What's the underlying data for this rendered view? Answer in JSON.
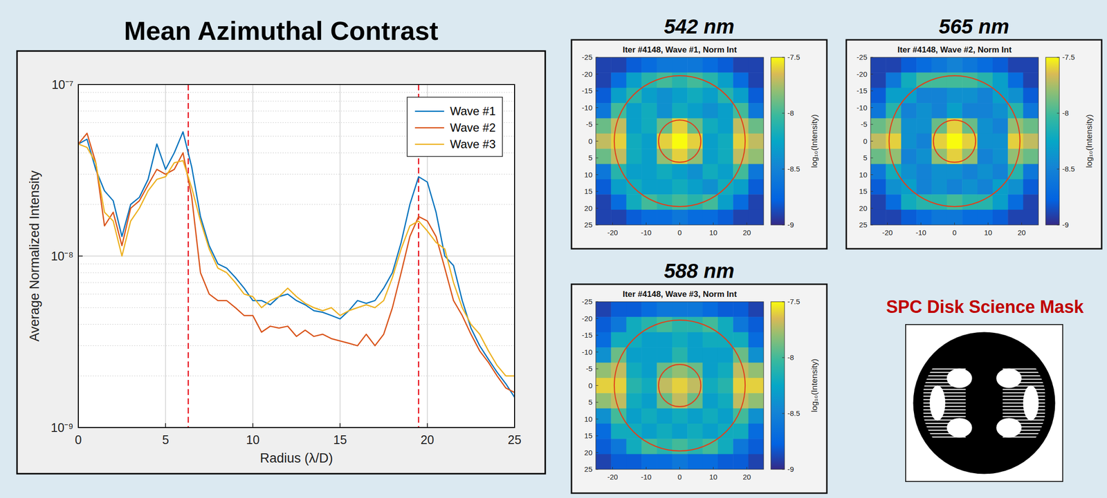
{
  "chart_data": [
    {
      "type": "line",
      "title": "Mean Azimuthal Contrast",
      "xlabel": "Radius (λ/D)",
      "ylabel": "Average Normalized Intensity",
      "log": "y",
      "grid": true,
      "legend": "upper right",
      "xlim": [
        0,
        25
      ],
      "xticks": [
        0,
        5,
        10,
        15,
        20,
        25
      ],
      "ylim": [
        1e-09,
        1e-07
      ],
      "yticks": [
        {
          "value": 1e-09,
          "label": "10⁻⁹"
        },
        {
          "value": 1e-08,
          "label": "10⁻⁸"
        },
        {
          "value": 1e-07,
          "label": "10⁻⁷"
        }
      ],
      "reference_lines": [
        6.3,
        19.5
      ],
      "x": [
        0,
        0.5,
        1,
        1.5,
        2,
        2.5,
        3,
        3.5,
        4,
        4.5,
        5,
        5.5,
        6,
        6.5,
        7,
        7.5,
        8,
        8.5,
        9,
        9.5,
        10,
        10.5,
        11,
        11.5,
        12,
        12.5,
        13,
        13.5,
        14,
        14.5,
        15,
        15.5,
        16,
        16.5,
        17,
        17.5,
        18,
        18.5,
        19,
        19.5,
        20,
        20.5,
        21,
        21.5,
        22,
        22.5,
        23,
        23.5,
        24,
        24.5,
        25
      ],
      "series": [
        {
          "name": "Wave #1",
          "color": "#0072bd",
          "values": [
            4.5e-08,
            4.8e-08,
            3.2e-08,
            2.4e-08,
            2.1e-08,
            1.3e-08,
            2e-08,
            2.2e-08,
            2.8e-08,
            4.5e-08,
            3.2e-08,
            4e-08,
            5.3e-08,
            3.3e-08,
            1.7e-08,
            1.15e-08,
            9e-09,
            8.5e-09,
            7.5e-09,
            6.5e-09,
            5.5e-09,
            5.5e-09,
            5.2e-09,
            5.8e-09,
            6e-09,
            5.5e-09,
            5.2e-09,
            4.8e-09,
            4.7e-09,
            4.5e-09,
            4.3e-09,
            4.8e-09,
            5.5e-09,
            5.3e-09,
            5.5e-09,
            6.5e-09,
            8e-09,
            1.2e-08,
            2e-08,
            2.9e-08,
            2.7e-08,
            1.8e-08,
            1e-08,
            8.8e-09,
            5.5e-09,
            3.8e-09,
            3e-09,
            2.5e-09,
            2.1e-09,
            1.8e-09,
            1.5e-09
          ]
        },
        {
          "name": "Wave #2",
          "color": "#d95319",
          "values": [
            4.5e-08,
            5.2e-08,
            3.5e-08,
            1.5e-08,
            1.8e-08,
            1.15e-08,
            1.9e-08,
            2.1e-08,
            2.6e-08,
            3.2e-08,
            3e-08,
            3.2e-08,
            4e-08,
            2.2e-08,
            8e-09,
            6e-09,
            5.5e-09,
            5.5e-09,
            5e-09,
            4.5e-09,
            4.5e-09,
            3.6e-09,
            3.9e-09,
            3.8e-09,
            3.9e-09,
            3.4e-09,
            3.7e-09,
            3.4e-09,
            3.5e-09,
            3.3e-09,
            3.2e-09,
            3.1e-09,
            3e-09,
            3.5e-09,
            3e-09,
            3.5e-09,
            5e-09,
            8e-09,
            1.3e-08,
            1.7e-08,
            1.6e-08,
            1.3e-08,
            8.5e-09,
            5.5e-09,
            4.5e-09,
            3.5e-09,
            2.8e-09,
            2.4e-09,
            2e-09,
            1.7e-09,
            1.6e-09
          ]
        },
        {
          "name": "Wave #3",
          "color": "#edb120",
          "values": [
            4.5e-08,
            4.3e-08,
            3.5e-08,
            1.8e-08,
            1.6e-08,
            1e-08,
            1.6e-08,
            1.9e-08,
            2.4e-08,
            2.8e-08,
            2.9e-08,
            3.5e-08,
            3.6e-08,
            2.5e-08,
            1.6e-08,
            1.1e-08,
            8.5e-09,
            8e-09,
            7e-09,
            6e-09,
            5.8e-09,
            5e-09,
            5.5e-09,
            5.8e-09,
            6.5e-09,
            5.8e-09,
            5.3e-09,
            5e-09,
            4.8e-09,
            5e-09,
            4.5e-09,
            4.8e-09,
            5e-09,
            5.2e-09,
            5e-09,
            5.5e-09,
            7.5e-09,
            1.1e-08,
            1.5e-08,
            1.6e-08,
            1.4e-08,
            1.2e-08,
            1.1e-08,
            7e-09,
            5e-09,
            4e-09,
            3.5e-09,
            2.8e-09,
            2.3e-09,
            2e-09,
            2e-09
          ]
        }
      ]
    },
    {
      "type": "heatmap",
      "title": "542 nm",
      "subtitle": "Iter #4148, Wave #1, Norm Int",
      "xlim": [
        -25,
        25
      ],
      "ylim": [
        -25,
        25
      ],
      "xticks": [
        -20,
        -10,
        0,
        10,
        20
      ],
      "yticks": [
        -25,
        -20,
        -15,
        -10,
        -5,
        0,
        5,
        10,
        15,
        20,
        25
      ],
      "colorbar": {
        "range": [
          -9,
          -7.5
        ],
        "ticks": [
          -7.5,
          -8,
          -8.5,
          -9
        ],
        "label": "log₁₀(Intensity)"
      },
      "circles": [
        6.3,
        19.5
      ],
      "cells": [
        [
          -8.9,
          -8.9,
          -8.8,
          -8.7,
          -8.6,
          -8.6,
          -8.6,
          -8.7,
          -8.8,
          -8.9,
          -8.9
        ],
        [
          -8.9,
          -8.7,
          -8.3,
          -8.1,
          -8.0,
          -8.1,
          -8.0,
          -8.1,
          -8.3,
          -8.7,
          -8.9
        ],
        [
          -8.8,
          -8.3,
          -8.1,
          -8.3,
          -8.4,
          -8.3,
          -8.2,
          -8.3,
          -8.1,
          -8.3,
          -8.8
        ],
        [
          -8.6,
          -8.0,
          -8.3,
          -8.2,
          -8.4,
          -8.2,
          -8.3,
          -8.4,
          -8.3,
          -8.0,
          -8.6
        ],
        [
          -7.9,
          -7.7,
          -8.3,
          -8.2,
          -7.9,
          -7.6,
          -7.9,
          -8.2,
          -8.3,
          -7.7,
          -7.9
        ],
        [
          -7.7,
          -7.6,
          -8.2,
          -8.3,
          -7.6,
          -7.5,
          -7.6,
          -8.3,
          -8.2,
          -7.6,
          -7.7
        ],
        [
          -7.9,
          -7.7,
          -8.2,
          -8.3,
          -7.8,
          -7.6,
          -7.8,
          -8.3,
          -8.2,
          -7.7,
          -7.8
        ],
        [
          -8.6,
          -8.1,
          -8.3,
          -8.3,
          -8.2,
          -8.3,
          -8.4,
          -8.2,
          -8.3,
          -8.0,
          -8.6
        ],
        [
          -8.8,
          -8.3,
          -8.2,
          -8.3,
          -8.3,
          -8.2,
          -8.3,
          -8.4,
          -8.2,
          -8.3,
          -8.8
        ],
        [
          -8.9,
          -8.7,
          -8.2,
          -8.0,
          -8.1,
          -8.0,
          -8.1,
          -8.0,
          -8.3,
          -8.7,
          -8.9
        ],
        [
          -8.9,
          -8.9,
          -8.8,
          -8.7,
          -8.7,
          -8.6,
          -8.7,
          -8.7,
          -8.8,
          -8.9,
          -8.9
        ]
      ]
    },
    {
      "type": "heatmap",
      "title": "565 nm",
      "subtitle": "Iter #4148, Wave #2, Norm Int",
      "xlim": [
        -25,
        25
      ],
      "ylim": [
        -25,
        25
      ],
      "xticks": [
        -20,
        -10,
        0,
        10,
        20
      ],
      "yticks": [
        -25,
        -20,
        -15,
        -10,
        -5,
        0,
        5,
        10,
        15,
        20,
        25
      ],
      "colorbar": {
        "range": [
          -9,
          -7.5
        ],
        "ticks": [
          -7.5,
          -8,
          -8.5,
          -9
        ],
        "label": "log₁₀(Intensity)"
      },
      "circles": [
        6.3,
        19.5
      ],
      "cells": [
        [
          -8.9,
          -8.9,
          -8.8,
          -8.7,
          -8.6,
          -8.5,
          -8.6,
          -8.7,
          -8.8,
          -8.9,
          -8.9
        ],
        [
          -8.9,
          -8.6,
          -8.2,
          -8.0,
          -8.0,
          -8.0,
          -8.0,
          -8.1,
          -8.3,
          -8.7,
          -8.9
        ],
        [
          -8.8,
          -8.3,
          -8.3,
          -8.5,
          -8.5,
          -8.4,
          -8.4,
          -8.5,
          -8.3,
          -8.4,
          -8.8
        ],
        [
          -8.6,
          -8.1,
          -8.5,
          -8.4,
          -8.5,
          -8.3,
          -8.5,
          -8.5,
          -8.4,
          -8.1,
          -8.6
        ],
        [
          -7.9,
          -7.8,
          -8.4,
          -8.4,
          -7.9,
          -7.6,
          -7.9,
          -8.4,
          -8.5,
          -7.8,
          -7.9
        ],
        [
          -7.7,
          -7.6,
          -8.4,
          -8.5,
          -7.6,
          -7.5,
          -7.6,
          -8.4,
          -8.4,
          -7.6,
          -7.7
        ],
        [
          -7.9,
          -7.8,
          -8.5,
          -8.4,
          -7.8,
          -7.6,
          -7.8,
          -8.5,
          -8.4,
          -7.8,
          -7.9
        ],
        [
          -8.6,
          -8.2,
          -8.4,
          -8.5,
          -8.4,
          -8.4,
          -8.5,
          -8.4,
          -8.5,
          -8.1,
          -8.6
        ],
        [
          -8.8,
          -8.4,
          -8.3,
          -8.5,
          -8.4,
          -8.5,
          -8.4,
          -8.5,
          -8.3,
          -8.4,
          -8.8
        ],
        [
          -8.9,
          -8.7,
          -8.2,
          -8.1,
          -8.1,
          -8.0,
          -8.1,
          -8.1,
          -8.3,
          -8.7,
          -8.9
        ],
        [
          -8.9,
          -8.9,
          -8.8,
          -8.7,
          -8.6,
          -8.6,
          -8.7,
          -8.7,
          -8.8,
          -8.9,
          -8.9
        ]
      ]
    },
    {
      "type": "heatmap",
      "title": "588 nm",
      "subtitle": "Iter #4148, Wave #3, Norm Int",
      "xlim": [
        -25,
        25
      ],
      "ylim": [
        -25,
        25
      ],
      "xticks": [
        -20,
        -10,
        0,
        10,
        20
      ],
      "yticks": [
        -25,
        -20,
        -15,
        -10,
        -5,
        0,
        5,
        10,
        15,
        20,
        25
      ],
      "colorbar": {
        "range": [
          -9,
          -7.5
        ],
        "ticks": [
          -7.5,
          -8,
          -8.5,
          -9
        ],
        "label": "log₁₀(Intensity)"
      },
      "circles": [
        6.3,
        19.5
      ],
      "cells": [
        [
          -8.9,
          -8.8,
          -8.8,
          -8.7,
          -8.6,
          -8.6,
          -8.6,
          -8.7,
          -8.8,
          -8.8,
          -8.9
        ],
        [
          -8.8,
          -8.6,
          -8.2,
          -8.1,
          -8.0,
          -8.1,
          -8.1,
          -8.0,
          -8.2,
          -8.6,
          -8.8
        ],
        [
          -8.7,
          -8.2,
          -8.2,
          -8.3,
          -8.3,
          -8.2,
          -8.3,
          -8.2,
          -8.2,
          -8.2,
          -8.7
        ],
        [
          -8.4,
          -7.9,
          -8.3,
          -8.3,
          -8.3,
          -8.1,
          -8.3,
          -8.3,
          -8.3,
          -7.9,
          -8.4
        ],
        [
          -7.8,
          -7.7,
          -8.2,
          -8.3,
          -7.9,
          -7.8,
          -7.9,
          -8.3,
          -8.2,
          -7.7,
          -7.8
        ],
        [
          -7.6,
          -7.6,
          -8.1,
          -8.2,
          -7.7,
          -7.6,
          -7.7,
          -8.2,
          -8.1,
          -7.6,
          -7.6
        ],
        [
          -7.8,
          -7.7,
          -8.2,
          -8.3,
          -7.9,
          -7.7,
          -7.9,
          -8.3,
          -8.2,
          -7.7,
          -7.8
        ],
        [
          -8.4,
          -8.0,
          -8.3,
          -8.2,
          -8.3,
          -8.2,
          -8.3,
          -8.2,
          -8.3,
          -8.0,
          -8.4
        ],
        [
          -8.7,
          -8.2,
          -8.2,
          -8.3,
          -8.2,
          -8.3,
          -8.2,
          -8.3,
          -8.2,
          -8.2,
          -8.7
        ],
        [
          -8.8,
          -8.6,
          -8.2,
          -8.0,
          -8.1,
          -8.0,
          -8.1,
          -8.0,
          -8.2,
          -8.6,
          -8.8
        ],
        [
          -8.9,
          -8.8,
          -8.8,
          -8.7,
          -8.7,
          -8.6,
          -8.7,
          -8.7,
          -8.8,
          -8.8,
          -8.9
        ]
      ]
    }
  ],
  "mask": {
    "title": "SPC Disk Science Mask"
  }
}
